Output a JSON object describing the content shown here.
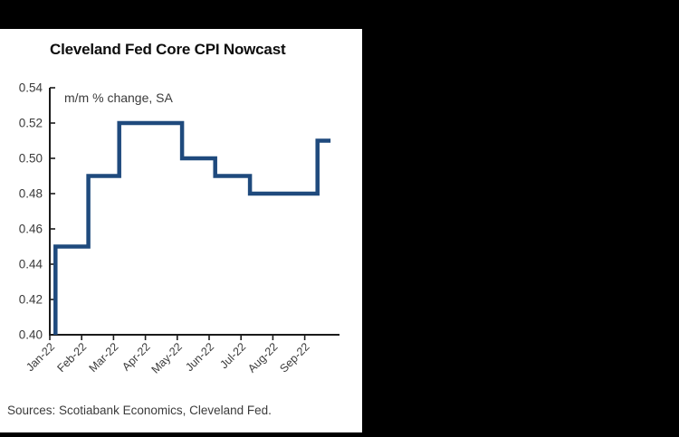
{
  "frame": {
    "top_bar_color": "#000000",
    "right_panel_color": "#000000",
    "bottom_bar_color": "#000000",
    "panel_bg_color": "#ffffff"
  },
  "chart": {
    "title": "Cleveland Fed Core CPI Nowcast",
    "subtitle": "m/m % change, SA",
    "source_note": "Sources: Scotiabank Economics, Cleveland Fed."
  },
  "chart_data": {
    "type": "line",
    "subtype": "step",
    "title": "Cleveland Fed Core CPI Nowcast",
    "ylabel": "m/m % change, SA",
    "xlabel": "",
    "legend": "none",
    "grid": false,
    "line_color": "#1f4a7d",
    "axis_color": "#1a1a1a",
    "tick_label_color": "#3b3b3b",
    "ylim": [
      0.4,
      0.54
    ],
    "y_tick_step": 0.02,
    "y_tick_labels": [
      "0.40",
      "0.42",
      "0.44",
      "0.46",
      "0.48",
      "0.50",
      "0.52",
      "0.54"
    ],
    "x_tick_labels": [
      "Jan-22",
      "Feb-22",
      "Mar-22",
      "Apr-22",
      "May-22",
      "Jun-22",
      "Jul-22",
      "Aug-22",
      "Sep-22"
    ],
    "monthly_nowcast_values": {
      "Jan-22": 0.45,
      "Feb-22": 0.49,
      "Mar-22": 0.52,
      "Apr-22": 0.52,
      "May-22": 0.5,
      "Jun-22": 0.49,
      "Jul-22": 0.48,
      "Aug-22": 0.48,
      "Sep-22": 0.51
    },
    "series": [
      {
        "name": "Cleveland Fed Core CPI Nowcast",
        "step_points_month_units": [
          [
            0.18,
            0.4
          ],
          [
            0.18,
            0.45
          ],
          [
            1.21,
            0.45
          ],
          [
            1.21,
            0.49
          ],
          [
            2.18,
            0.49
          ],
          [
            2.18,
            0.52
          ],
          [
            4.15,
            0.52
          ],
          [
            4.15,
            0.5
          ],
          [
            5.19,
            0.5
          ],
          [
            5.19,
            0.49
          ],
          [
            6.28,
            0.49
          ],
          [
            6.28,
            0.48
          ],
          [
            8.4,
            0.48
          ],
          [
            8.4,
            0.51
          ],
          [
            8.81,
            0.51
          ]
        ]
      }
    ]
  }
}
